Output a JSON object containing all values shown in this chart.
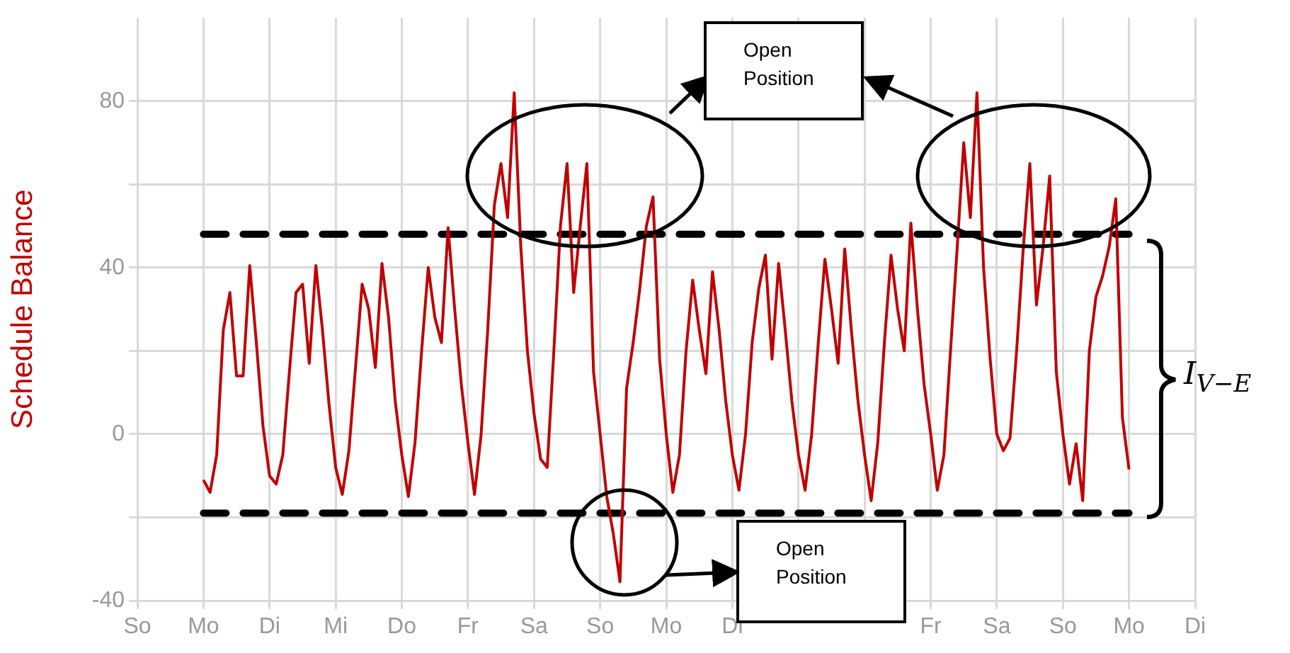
{
  "chart_data": {
    "type": "line",
    "ylabel": "Schedule Balance",
    "categories": [
      "So",
      null,
      null,
      null,
      null,
      null,
      null,
      null,
      null,
      null,
      "Mo",
      null,
      null,
      null,
      null,
      null,
      null,
      null,
      null,
      null,
      "Di",
      null,
      null,
      null,
      null,
      null,
      null,
      null,
      null,
      null,
      "Mi",
      null,
      null,
      null,
      null,
      null,
      null,
      null,
      null,
      null,
      "Do",
      null,
      null,
      null,
      null,
      null,
      null,
      null,
      null,
      null,
      "Fr",
      null,
      null,
      null,
      null,
      null,
      null,
      null,
      null,
      null,
      "Sa",
      null,
      null,
      null,
      null,
      null,
      null,
      null,
      null,
      null,
      "So",
      null,
      null,
      null,
      null,
      null,
      null,
      null,
      null,
      null,
      "Mo",
      null,
      null,
      null,
      null,
      null,
      null,
      null,
      null,
      null,
      "Di",
      null,
      null,
      null,
      null,
      null,
      null,
      null,
      null,
      null,
      null,
      null,
      null,
      null,
      null,
      null,
      null,
      null,
      null,
      null,
      null,
      null,
      null,
      null,
      null,
      null,
      null,
      null,
      null,
      null,
      "Fr",
      null,
      null,
      null,
      null,
      null,
      null,
      null,
      null,
      null,
      "Sa",
      null,
      null,
      null,
      null,
      null,
      null,
      null,
      null,
      null,
      "So",
      null,
      null,
      null,
      null,
      null,
      null,
      null,
      null,
      null,
      "Mo",
      null,
      null,
      null,
      null,
      null,
      null,
      null,
      null,
      null,
      "Di"
    ],
    "ylim": [
      -40,
      100
    ],
    "yticks": [
      -40,
      {
        "value": -20,
        "label": null
      },
      0,
      {
        "value": 20,
        "label": null
      },
      40,
      {
        "value": 60,
        "label": null
      },
      80
    ],
    "grid": true,
    "marker": "none",
    "series": [
      {
        "color": "#c00000",
        "line_style": "solid",
        "values": [
          null,
          null,
          null,
          null,
          null,
          null,
          null,
          null,
          null,
          null,
          -11,
          -14,
          -5,
          25,
          34,
          14,
          14,
          40.5,
          22,
          2,
          -10,
          -12,
          -5,
          15,
          34,
          36,
          17,
          40.5,
          25,
          7,
          -8,
          -14.5,
          -4,
          16,
          36,
          30,
          16,
          41,
          28,
          8,
          -5,
          -15,
          -2,
          20,
          40,
          28,
          22,
          49.6,
          30,
          12,
          -2,
          -14.5,
          0,
          25,
          55,
          65,
          52,
          82,
          45,
          20,
          5,
          -6,
          -8,
          20,
          50,
          65,
          34,
          50,
          65,
          15,
          0,
          -15,
          -24,
          -35.5,
          11,
          22,
          35,
          50,
          57,
          18,
          0,
          -14,
          -5,
          20,
          37,
          25,
          14.5,
          39,
          25,
          8,
          -5,
          -13.5,
          0,
          22,
          35,
          43,
          18,
          41,
          25,
          8,
          -5,
          -13.5,
          0,
          22,
          42,
          30,
          17,
          44.5,
          25,
          8,
          -5,
          -16,
          -2,
          22,
          43,
          30,
          20,
          50.7,
          30,
          12,
          0,
          -13.5,
          -5,
          20,
          44.5,
          70,
          52,
          82,
          40,
          18,
          0,
          -4,
          -1,
          20,
          44.5,
          65,
          31,
          45,
          62,
          15,
          0,
          -12,
          -2.3,
          -16,
          20,
          33,
          38,
          45,
          56.5,
          4,
          -8.5,
          null,
          null,
          null,
          null,
          null,
          null,
          null,
          null,
          null,
          null
        ]
      },
      {
        "color": "#000000",
        "line_style": "dashed",
        "values": [
          null,
          null,
          null,
          null,
          null,
          null,
          null,
          null,
          null,
          null,
          48,
          48,
          48,
          48,
          48,
          48,
          48,
          48,
          48,
          48,
          48,
          48,
          48,
          48,
          48,
          48,
          48,
          48,
          48,
          48,
          48,
          48,
          48,
          48,
          48,
          48,
          48,
          48,
          48,
          48,
          48,
          48,
          48,
          48,
          48,
          48,
          48,
          48,
          48,
          48,
          48,
          48,
          48,
          48,
          48,
          48,
          48,
          48,
          48,
          48,
          48,
          48,
          48,
          48,
          48,
          48,
          48,
          48,
          48,
          48,
          48,
          48,
          48,
          48,
          48,
          48,
          48,
          48,
          48,
          48,
          48,
          48,
          48,
          48,
          48,
          48,
          48,
          48,
          48,
          48,
          48,
          48,
          48,
          48,
          48,
          48,
          48,
          48,
          48,
          48,
          48,
          48,
          48,
          48,
          48,
          48,
          48,
          48,
          48,
          48,
          48,
          48,
          48,
          48,
          48,
          48,
          48,
          48,
          48,
          48,
          48,
          48,
          48,
          48,
          48,
          48,
          48,
          48,
          48,
          48,
          48,
          48,
          48,
          48,
          48,
          48,
          48,
          48,
          48,
          48,
          48,
          48,
          48,
          48,
          48,
          48,
          48,
          48,
          48,
          48,
          48,
          null,
          null,
          null,
          null,
          null,
          null,
          null,
          null,
          null,
          null
        ]
      },
      {
        "color": "#000000",
        "line_style": "dashed",
        "values": [
          null,
          null,
          null,
          null,
          null,
          null,
          null,
          null,
          null,
          null,
          -19,
          -19,
          -19,
          -19,
          -19,
          -19,
          -19,
          -19,
          -19,
          -19,
          -19,
          -19,
          -19,
          -19,
          -19,
          -19,
          -19,
          -19,
          -19,
          -19,
          -19,
          -19,
          -19,
          -19,
          -19,
          -19,
          -19,
          -19,
          -19,
          -19,
          -19,
          -19,
          -19,
          -19,
          -19,
          -19,
          -19,
          -19,
          -19,
          -19,
          -19,
          -19,
          -19,
          -19,
          -19,
          -19,
          -19,
          -19,
          -19,
          -19,
          -19,
          -19,
          -19,
          -19,
          -19,
          -19,
          -19,
          -19,
          -19,
          -19,
          -19,
          -19,
          -19,
          -19,
          -19,
          -19,
          -19,
          -19,
          -19,
          -19,
          -19,
          -19,
          -19,
          -19,
          -19,
          -19,
          -19,
          -19,
          -19,
          -19,
          -19,
          -19,
          -19,
          -19,
          -19,
          -19,
          -19,
          -19,
          -19,
          -19,
          -19,
          -19,
          -19,
          -19,
          -19,
          -19,
          -19,
          -19,
          -19,
          -19,
          -19,
          -19,
          -19,
          -19,
          -19,
          -19,
          -19,
          -19,
          -19,
          -19,
          -19,
          -19,
          -19,
          -19,
          -19,
          -19,
          -19,
          -19,
          -19,
          -19,
          -19,
          -19,
          -19,
          -19,
          -19,
          -19,
          -19,
          -19,
          -19,
          -19,
          -19,
          -19,
          -19,
          -19,
          -19,
          -19,
          -19,
          -19,
          -19,
          -19,
          -19,
          null,
          null,
          null,
          null,
          null,
          null,
          null,
          null,
          null,
          null
        ]
      }
    ],
    "annotations": [
      "Open Position",
      "Open Position",
      "I$_{V−E}$"
    ]
  }
}
